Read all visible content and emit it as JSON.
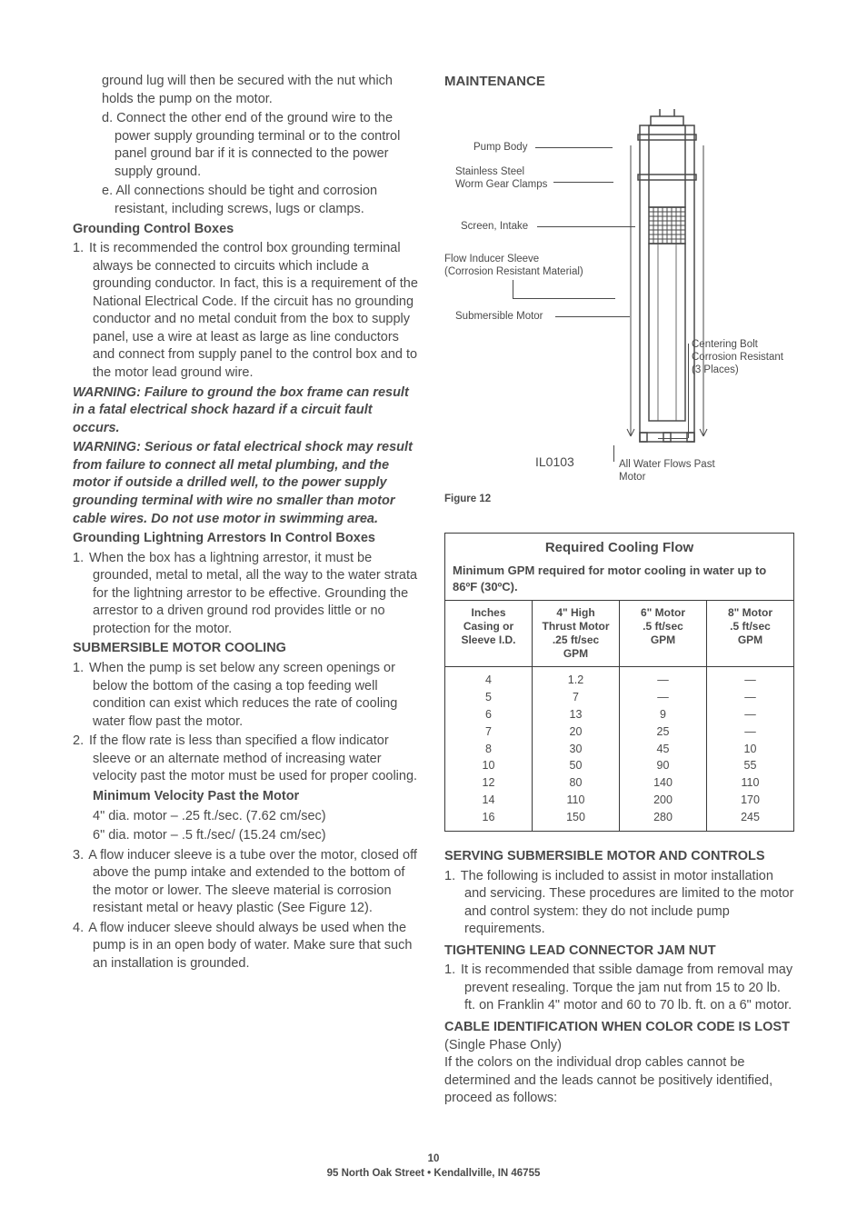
{
  "left": {
    "intro_indent": "ground lug will then be secured with the nut which holds the pump on the motor.",
    "item_d": "d. Connect the other end of the ground wire to the power supply grounding terminal or to the control panel ground bar if it is connected to the power supply ground.",
    "item_e": "e. All connections should be tight and corrosion resistant, including screws, lugs or clamps.",
    "h_gcb": "Grounding Control Boxes",
    "gcb_1": "It is recommended the control box grounding terminal always be connected to circuits which include a grounding conductor.  In fact, this is a requirement of the National Electrical Code.  If the circuit has no grounding conductor and no metal conduit from the box to supply panel, use a wire at least as large as line conductors and connect from supply panel to the control box and to the motor lead ground wire.",
    "warn1": "WARNING:  Failure to ground the box frame can result in a fatal electrical shock hazard if a circuit fault occurs.",
    "warn2": "WARNING:  Serious or fatal electrical shock may result from failure to connect all metal plumbing, and the motor if outside a drilled well, to the power supply grounding terminal with wire no smaller than motor cable wires.  Do not use motor in swimming area.",
    "h_gla": "Grounding Lightning Arrestors In Control Boxes",
    "gla_1": "When the box has a lightning arrestor, it must be grounded, metal to metal, all the way to the water strata for the lightning arrestor to be effective.  Grounding the arrestor to a driven ground rod provides little or no protection for the motor.",
    "h_smc": "SUBMERSIBLE MOTOR COOLING",
    "smc_1": "When the pump is set below any screen openings or below the bottom of the casing a top feeding well condition can exist which reduces the rate of cooling water flow past the motor.",
    "smc_2": "If the flow rate is less than specified a flow indicator sleeve or an alternate method of increasing water velocity past the motor must be used for proper cooling.",
    "mv_h": "Minimum Velocity Past the Motor",
    "mv_l1": "4\" dia. motor – .25 ft./sec. (7.62 cm/sec)",
    "mv_l2": "6\" dia. motor – .5  ft./sec/ (15.24 cm/sec)",
    "smc_3": "A flow inducer sleeve is a tube over the motor, closed off above the pump intake and extended to the bottom of the motor or lower.  The sleeve material is corrosion resistant metal or heavy plastic (See Figure 12).",
    "smc_4": "A flow inducer sleeve should always be used when the pump is in an open body of water. Make sure that such an installation is grounded."
  },
  "right": {
    "h_maint": "MAINTENANCE",
    "diagram": {
      "labels": {
        "pump_body": "Pump Body",
        "clamps_l1": "Stainless Steel",
        "clamps_l2": "Worm Gear Clamps",
        "screen": "Screen, Intake",
        "sleeve_l1": "Flow Inducer Sleeve",
        "sleeve_l2": "(Corrosion Resistant Material)",
        "motor": "Submersible Motor",
        "bolt_l1": "Centering Bolt",
        "bolt_l2": "Corrosion Resistant",
        "bolt_l3": "(3 Places)",
        "code": "IL0103",
        "flow_l1": "All Water Flows Past",
        "flow_l2": "Motor"
      }
    },
    "figure_caption": "Figure 12",
    "table": {
      "title": "Required Cooling Flow",
      "subtitle": "Minimum GPM required for motor cooling in water up to 86ºF (30ºC).",
      "headers": {
        "c1": "Inches\nCasing or\nSleeve I.D.",
        "c2": "4\" High\nThrust Motor\n.25 ft/sec\nGPM",
        "c3": "6\" Motor\n.5 ft/sec\nGPM",
        "c4": "8\" Motor\n.5 ft/sec\nGPM"
      },
      "rows": [
        [
          "4",
          "1.2",
          "—",
          "—"
        ],
        [
          "5",
          "7",
          "—",
          "—"
        ],
        [
          "6",
          "13",
          "9",
          "—"
        ],
        [
          "7",
          "20",
          "25",
          "—"
        ],
        [
          "8",
          "30",
          "45",
          "10"
        ],
        [
          "10",
          "50",
          "90",
          "55"
        ],
        [
          "12",
          "80",
          "140",
          "110"
        ],
        [
          "14",
          "110",
          "200",
          "170"
        ],
        [
          "16",
          "150",
          "280",
          "245"
        ]
      ]
    },
    "h_ssm": "SERVING SUBMERSIBLE MOTOR AND CONTROLS",
    "ssm_1": "The following is included to assist in motor installation and servicing.  These procedures are limited to the motor and control system: they do not include pump requirements.",
    "h_tlc": "TIGHTENING LEAD CONNECTOR JAM NUT",
    "tlc_1": "It is recommended that   ssible damage from removal may prevent resealing.  Torque the jam nut from 15 to 20 lb. ft. on Franklin 4\" motor and 60 to 70 lb. ft. on a 6\" motor.",
    "h_cid": "CABLE IDENTIFICATION WHEN COLOR CODE IS LOST",
    "cid_sub": "(Single Phase Only)",
    "cid_text": "If the colors on the individual drop cables cannot be determined and the leads cannot be positively identified, proceed as follows:"
  },
  "footer": {
    "page": "10",
    "addr": "95 North Oak Street • Kendallville, IN  46755"
  }
}
